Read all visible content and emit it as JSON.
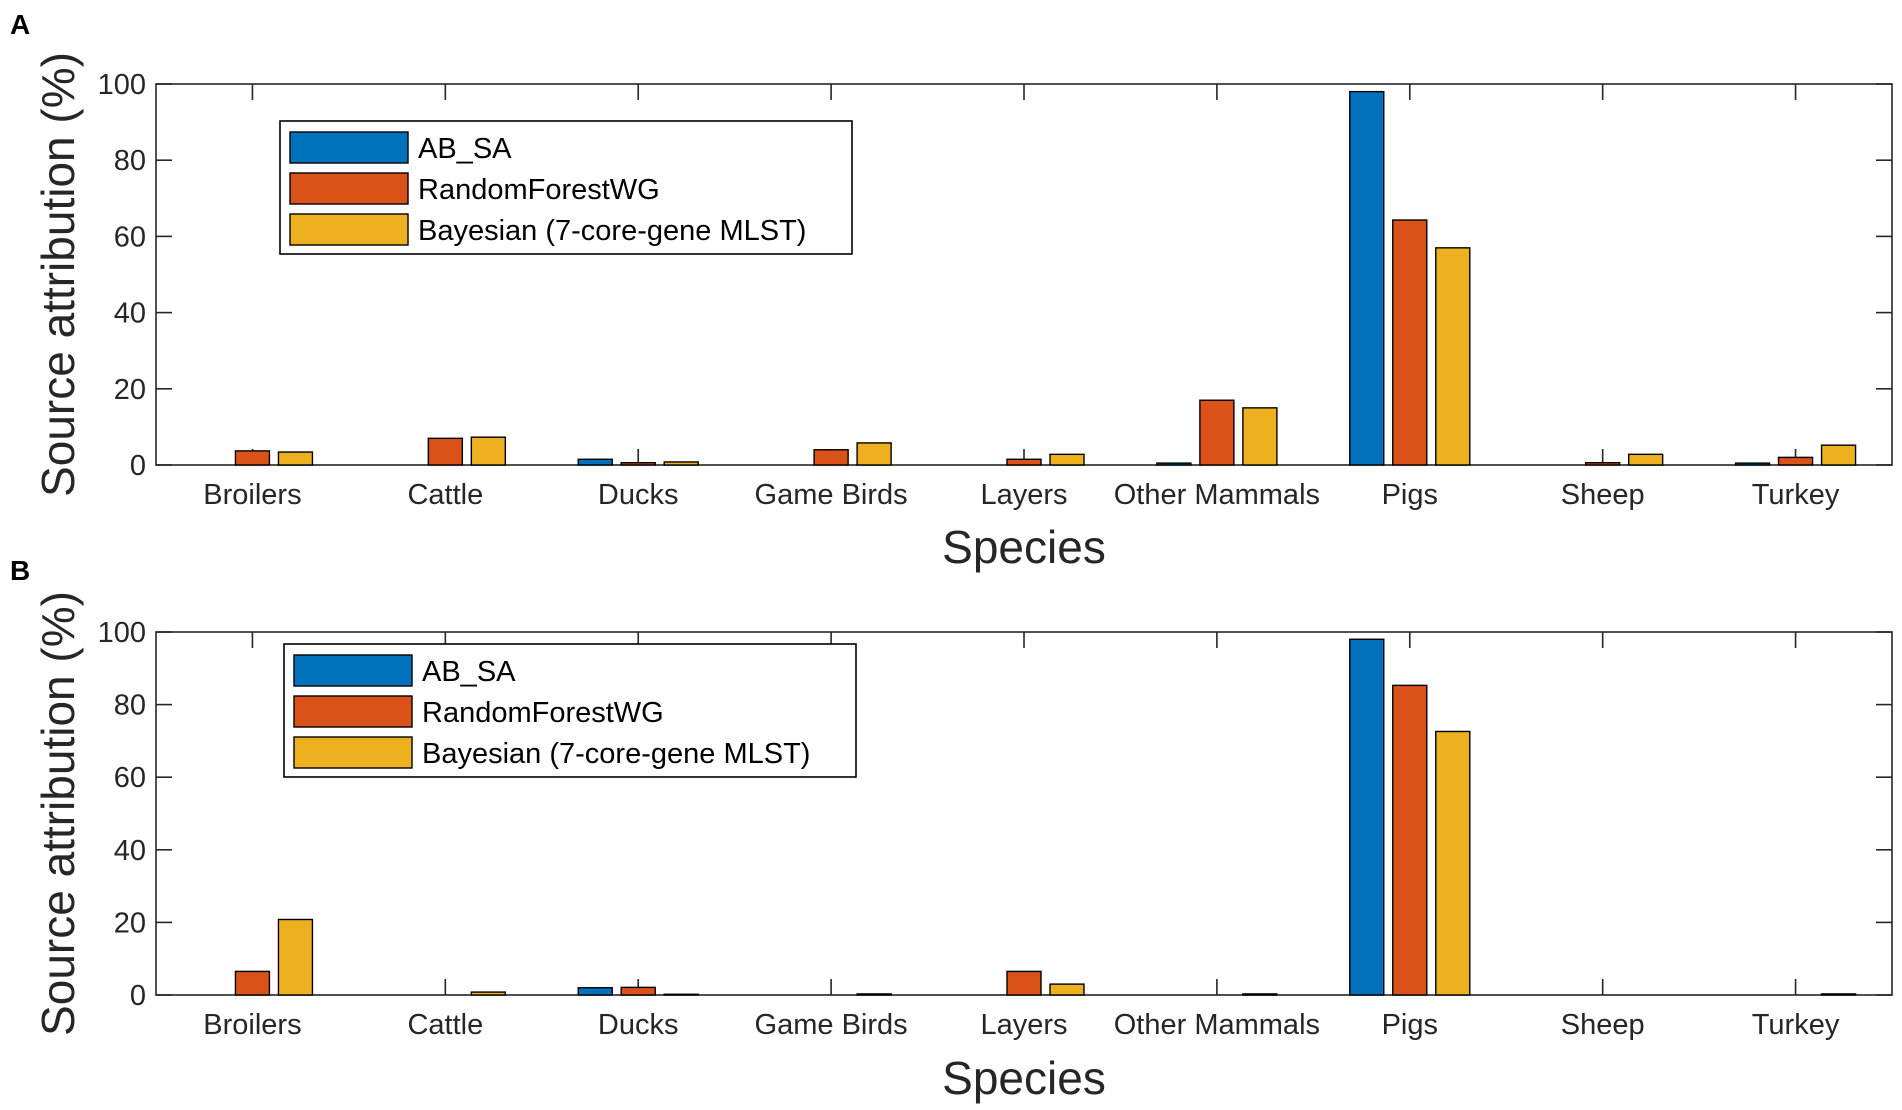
{
  "colors": {
    "AB_SA": "#0072BD",
    "RandomForestWG": "#D95319",
    "Bayesian (7-core-gene MLST)": "#EDB120",
    "axis": "#262626"
  },
  "chart_data": [
    {
      "panel_label": "A",
      "type": "bar",
      "title": "",
      "xlabel": "Species",
      "ylabel": "Source attribution (%)",
      "ylim": [
        0,
        100
      ],
      "yticks": [
        0,
        20,
        40,
        60,
        80,
        100
      ],
      "legend_position": "top-left",
      "grid": false,
      "categories": [
        "Broilers",
        "Cattle",
        "Ducks",
        "Game Birds",
        "Layers",
        "Other Mammals",
        "Pigs",
        "Sheep",
        "Turkey"
      ],
      "series": [
        {
          "name": "AB_SA",
          "values": [
            0,
            0,
            1.5,
            0,
            0,
            0.5,
            98,
            0,
            0.5
          ]
        },
        {
          "name": "RandomForestWG",
          "values": [
            3.7,
            7,
            0.6,
            4,
            1.5,
            17,
            64.3,
            0.6,
            2
          ]
        },
        {
          "name": "Bayesian (7-core-gene MLST)",
          "values": [
            3.4,
            7.3,
            0.8,
            5.8,
            2.8,
            15,
            57,
            2.8,
            5.2
          ]
        }
      ]
    },
    {
      "panel_label": "B",
      "type": "bar",
      "title": "",
      "xlabel": "Species",
      "ylabel": "Source attribution (%)",
      "ylim": [
        0,
        100
      ],
      "yticks": [
        0,
        20,
        40,
        60,
        80,
        100
      ],
      "legend_position": "top-left",
      "grid": false,
      "categories": [
        "Broilers",
        "Cattle",
        "Ducks",
        "Game Birds",
        "Layers",
        "Other Mammals",
        "Pigs",
        "Sheep",
        "Turkey"
      ],
      "series": [
        {
          "name": "AB_SA",
          "values": [
            0,
            0,
            2,
            0,
            0,
            0,
            98,
            0,
            0
          ]
        },
        {
          "name": "RandomForestWG",
          "values": [
            6.5,
            0,
            2.1,
            0,
            6.5,
            0,
            85.3,
            0,
            0
          ]
        },
        {
          "name": "Bayesian (7-core-gene MLST)",
          "values": [
            20.8,
            0.8,
            0.2,
            0.3,
            3,
            0.3,
            72.6,
            0,
            0.3
          ]
        }
      ]
    }
  ]
}
